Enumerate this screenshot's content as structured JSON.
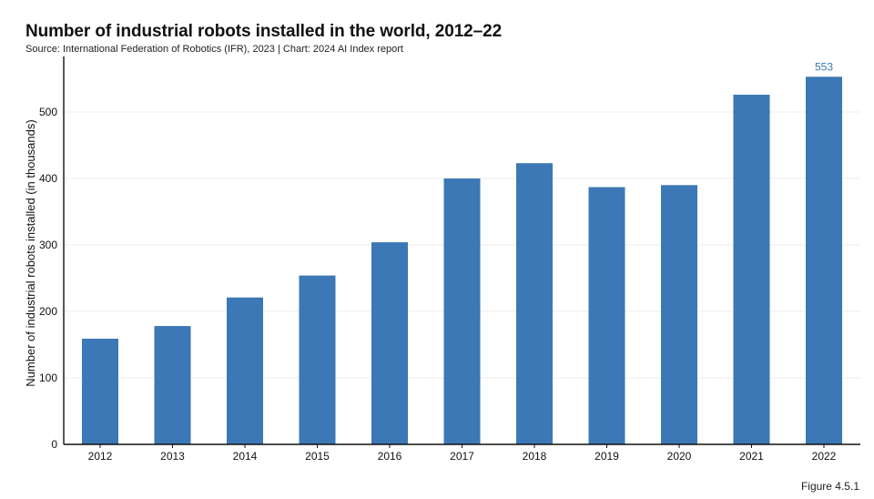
{
  "header": {
    "title": "Number of industrial robots installed in the world, 2012–22",
    "subtitle": "Source: International Federation of Robotics (IFR), 2023 | Chart: 2024 AI Index report"
  },
  "footer": {
    "figure_label": "Figure 4.5.1"
  },
  "chart_data": {
    "type": "bar",
    "title": "Number of industrial robots installed in the world, 2012–22",
    "xlabel": "",
    "ylabel": "Number of industrial robots installed (in thousands)",
    "categories": [
      "2012",
      "2013",
      "2014",
      "2015",
      "2016",
      "2017",
      "2018",
      "2019",
      "2020",
      "2021",
      "2022"
    ],
    "values": [
      159,
      178,
      221,
      254,
      304,
      400,
      423,
      387,
      390,
      526,
      553
    ],
    "ylim": [
      0,
      570
    ],
    "yticks": [
      0,
      100,
      200,
      300,
      400,
      500
    ],
    "data_labels": [
      {
        "category": "2022",
        "text": "553"
      }
    ],
    "bar_color": "#3b78b5",
    "label_color": "#3b78b5",
    "grid": true,
    "grid_color": "#ececec"
  }
}
